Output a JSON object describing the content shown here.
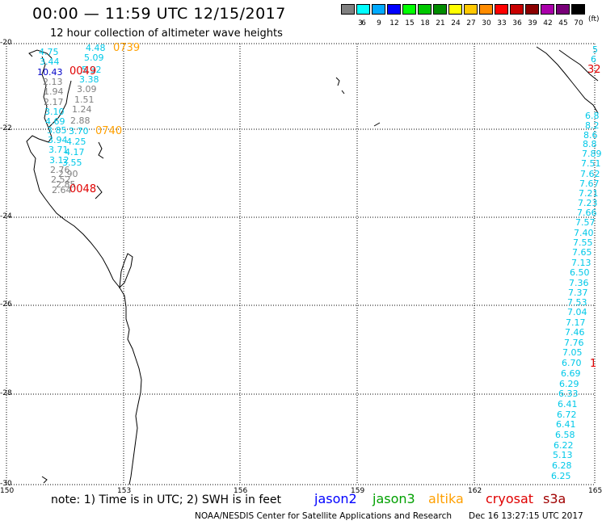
{
  "header": {
    "title": "00:00 — 11:59 UTC 12/15/2017",
    "subtitle": "12 hour collection of altimeter wave heights"
  },
  "colorbar": {
    "unit": "(ft)",
    "swatches": [
      {
        "color": "#808080",
        "label": "3"
      },
      {
        "color": "#00ffff",
        "label": "6"
      },
      {
        "color": "#00aaff",
        "label": "9"
      },
      {
        "color": "#0000ff",
        "label": "12"
      },
      {
        "color": "#00ff00",
        "label": "15"
      },
      {
        "color": "#00c800",
        "label": "18"
      },
      {
        "color": "#008c00",
        "label": "21"
      },
      {
        "color": "#ffff00",
        "label": "24"
      },
      {
        "color": "#ffc800",
        "label": "27"
      },
      {
        "color": "#ff8c00",
        "label": "30"
      },
      {
        "color": "#ff0000",
        "label": "33"
      },
      {
        "color": "#c80000",
        "label": "36"
      },
      {
        "color": "#8c0000",
        "label": "39"
      },
      {
        "color": "#aa00aa",
        "label": "42"
      },
      {
        "color": "#780078",
        "label": "45"
      },
      {
        "color": "#000000",
        "label": "70"
      }
    ]
  },
  "map": {
    "lat_labels": [
      "-20",
      "-22",
      "-24",
      "-26",
      "-28",
      "-30"
    ],
    "lon_labels": [
      "150",
      "153",
      "156",
      "159",
      "162",
      "165"
    ]
  },
  "colors": {
    "cyan": "#00c8e8",
    "gray": "#808080",
    "blue": "#0000c8",
    "orange": "#ffa000",
    "red": "#e00000",
    "jason2": "#0000ff",
    "jason3": "#00a000",
    "altika": "#ffa000",
    "cryosat": "#e00000",
    "s3a": "#a00000"
  },
  "west_track": [
    {
      "text": "4.48",
      "c": "cyan"
    },
    {
      "text": "4.75",
      "c": "cyan"
    },
    {
      "text": "5.09",
      "c": "cyan"
    },
    {
      "text": "3.44",
      "c": "cyan"
    },
    {
      "text": "10.43",
      "c": "blue"
    },
    {
      "text": "5.32",
      "c": "cyan"
    },
    {
      "text": "2.13",
      "c": "gray"
    },
    {
      "text": "3.38",
      "c": "cyan"
    },
    {
      "text": "1.94",
      "c": "gray"
    },
    {
      "text": "3.09",
      "c": "gray"
    },
    {
      "text": "2.17",
      "c": "gray"
    },
    {
      "text": "1.51",
      "c": "gray"
    },
    {
      "text": "3.10",
      "c": "cyan"
    },
    {
      "text": "1.24",
      "c": "gray"
    },
    {
      "text": "4.69",
      "c": "cyan"
    },
    {
      "text": "2.88",
      "c": "gray"
    },
    {
      "text": "3.85",
      "c": "cyan"
    },
    {
      "text": "3.70",
      "c": "cyan"
    },
    {
      "text": "3.94",
      "c": "cyan"
    },
    {
      "text": "4.25",
      "c": "cyan"
    },
    {
      "text": "3.71",
      "c": "cyan"
    },
    {
      "text": "4.17",
      "c": "cyan"
    },
    {
      "text": "3.12",
      "c": "cyan"
    },
    {
      "text": "3.55",
      "c": "cyan"
    },
    {
      "text": "2.76",
      "c": "gray"
    },
    {
      "text": "2.90",
      "c": "gray"
    },
    {
      "text": "2.52",
      "c": "gray"
    },
    {
      "text": "2.85",
      "c": "gray"
    },
    {
      "text": "2.64",
      "c": "gray"
    }
  ],
  "time_labels": [
    {
      "text": "0739",
      "c": "orange"
    },
    {
      "text": "0049",
      "c": "red"
    },
    {
      "text": "0740",
      "c": "orange"
    },
    {
      "text": "0048",
      "c": "red"
    }
  ],
  "east_track": [
    {
      "text": "5",
      "c": "cyan"
    },
    {
      "text": "6",
      "c": "cyan"
    },
    {
      "text": "32",
      "c": "red"
    },
    {
      "text": "6.8",
      "c": "cyan"
    },
    {
      "text": "8.2",
      "c": "cyan"
    },
    {
      "text": "8.6",
      "c": "cyan"
    },
    {
      "text": "8.8",
      "c": "cyan"
    },
    {
      "text": "7.89",
      "c": "cyan"
    },
    {
      "text": "7.51",
      "c": "cyan"
    },
    {
      "text": "7.62",
      "c": "cyan"
    },
    {
      "text": "7.67",
      "c": "cyan"
    },
    {
      "text": "7.21",
      "c": "cyan"
    },
    {
      "text": "7.23",
      "c": "cyan"
    },
    {
      "text": "7.66",
      "c": "cyan"
    },
    {
      "text": "7.57",
      "c": "cyan"
    },
    {
      "text": "7.40",
      "c": "cyan"
    },
    {
      "text": "7.55",
      "c": "cyan"
    },
    {
      "text": "7.65",
      "c": "cyan"
    },
    {
      "text": "7.13",
      "c": "cyan"
    },
    {
      "text": "6.50",
      "c": "cyan"
    },
    {
      "text": "7.36",
      "c": "cyan"
    },
    {
      "text": "7.37",
      "c": "cyan"
    },
    {
      "text": "7.53",
      "c": "cyan"
    },
    {
      "text": "7.04",
      "c": "cyan"
    },
    {
      "text": "7.17",
      "c": "cyan"
    },
    {
      "text": "7.46",
      "c": "cyan"
    },
    {
      "text": "7.76",
      "c": "cyan"
    },
    {
      "text": "7.05",
      "c": "cyan"
    },
    {
      "text": "6.70",
      "c": "cyan"
    },
    {
      "text": "1",
      "c": "red"
    },
    {
      "text": "6.69",
      "c": "cyan"
    },
    {
      "text": "6.29",
      "c": "cyan"
    },
    {
      "text": "6.33",
      "c": "cyan"
    },
    {
      "text": "6.41",
      "c": "cyan"
    },
    {
      "text": "6.72",
      "c": "cyan"
    },
    {
      "text": "6.41",
      "c": "cyan"
    },
    {
      "text": "6.58",
      "c": "cyan"
    },
    {
      "text": "6.22",
      "c": "cyan"
    },
    {
      "text": "5.13",
      "c": "cyan"
    },
    {
      "text": "6.28",
      "c": "cyan"
    },
    {
      "text": "6.25",
      "c": "cyan"
    }
  ],
  "footer": {
    "note": "note: 1) Time is in UTC; 2) SWH is in feet",
    "satellites": [
      "jason2",
      "jason3",
      "altika",
      "cryosat",
      "s3a"
    ],
    "credit": "NOAA/NESDIS Center for Satellite Applications and Research",
    "timestamp": "Dec 16 13:27:15 UTC 2017"
  }
}
